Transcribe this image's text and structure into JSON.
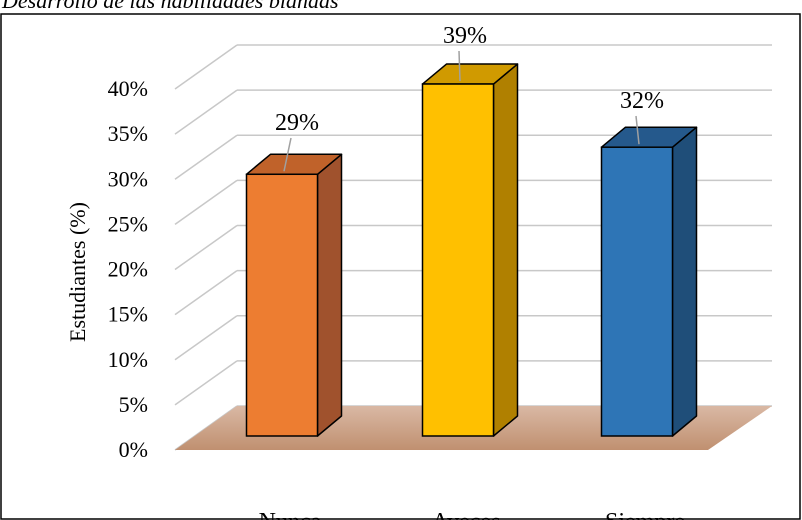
{
  "chart_data": {
    "type": "bar",
    "title": "Desarrollo de las habilidades blandas",
    "categories": [
      "Nunca",
      "Aveces",
      "Siempre"
    ],
    "values": [
      29,
      39,
      32
    ],
    "data_labels": [
      "29%",
      "39%",
      "32%"
    ],
    "xlabel": "",
    "ylabel": "Estudiantes (%)",
    "ylim": [
      0,
      40
    ],
    "yticks": [
      0,
      5,
      10,
      15,
      20,
      25,
      30,
      35,
      40
    ],
    "ytick_labels": [
      "0%",
      "5%",
      "10%",
      "15%",
      "20%",
      "25%",
      "30%",
      "35%",
      "40%"
    ],
    "grid": true,
    "style": "3d-column",
    "colors": {
      "bars": [
        "#ed7d31",
        "#ffc000",
        "#2e75b6"
      ],
      "bar_sides": [
        "#a0522d",
        "#b08000",
        "#1f4e79"
      ],
      "bar_tops": [
        "#c0622a",
        "#d09a00",
        "#25598c"
      ],
      "floor": "#c9a08a",
      "gridline": "#c8c8c8",
      "text": "#000000"
    }
  }
}
